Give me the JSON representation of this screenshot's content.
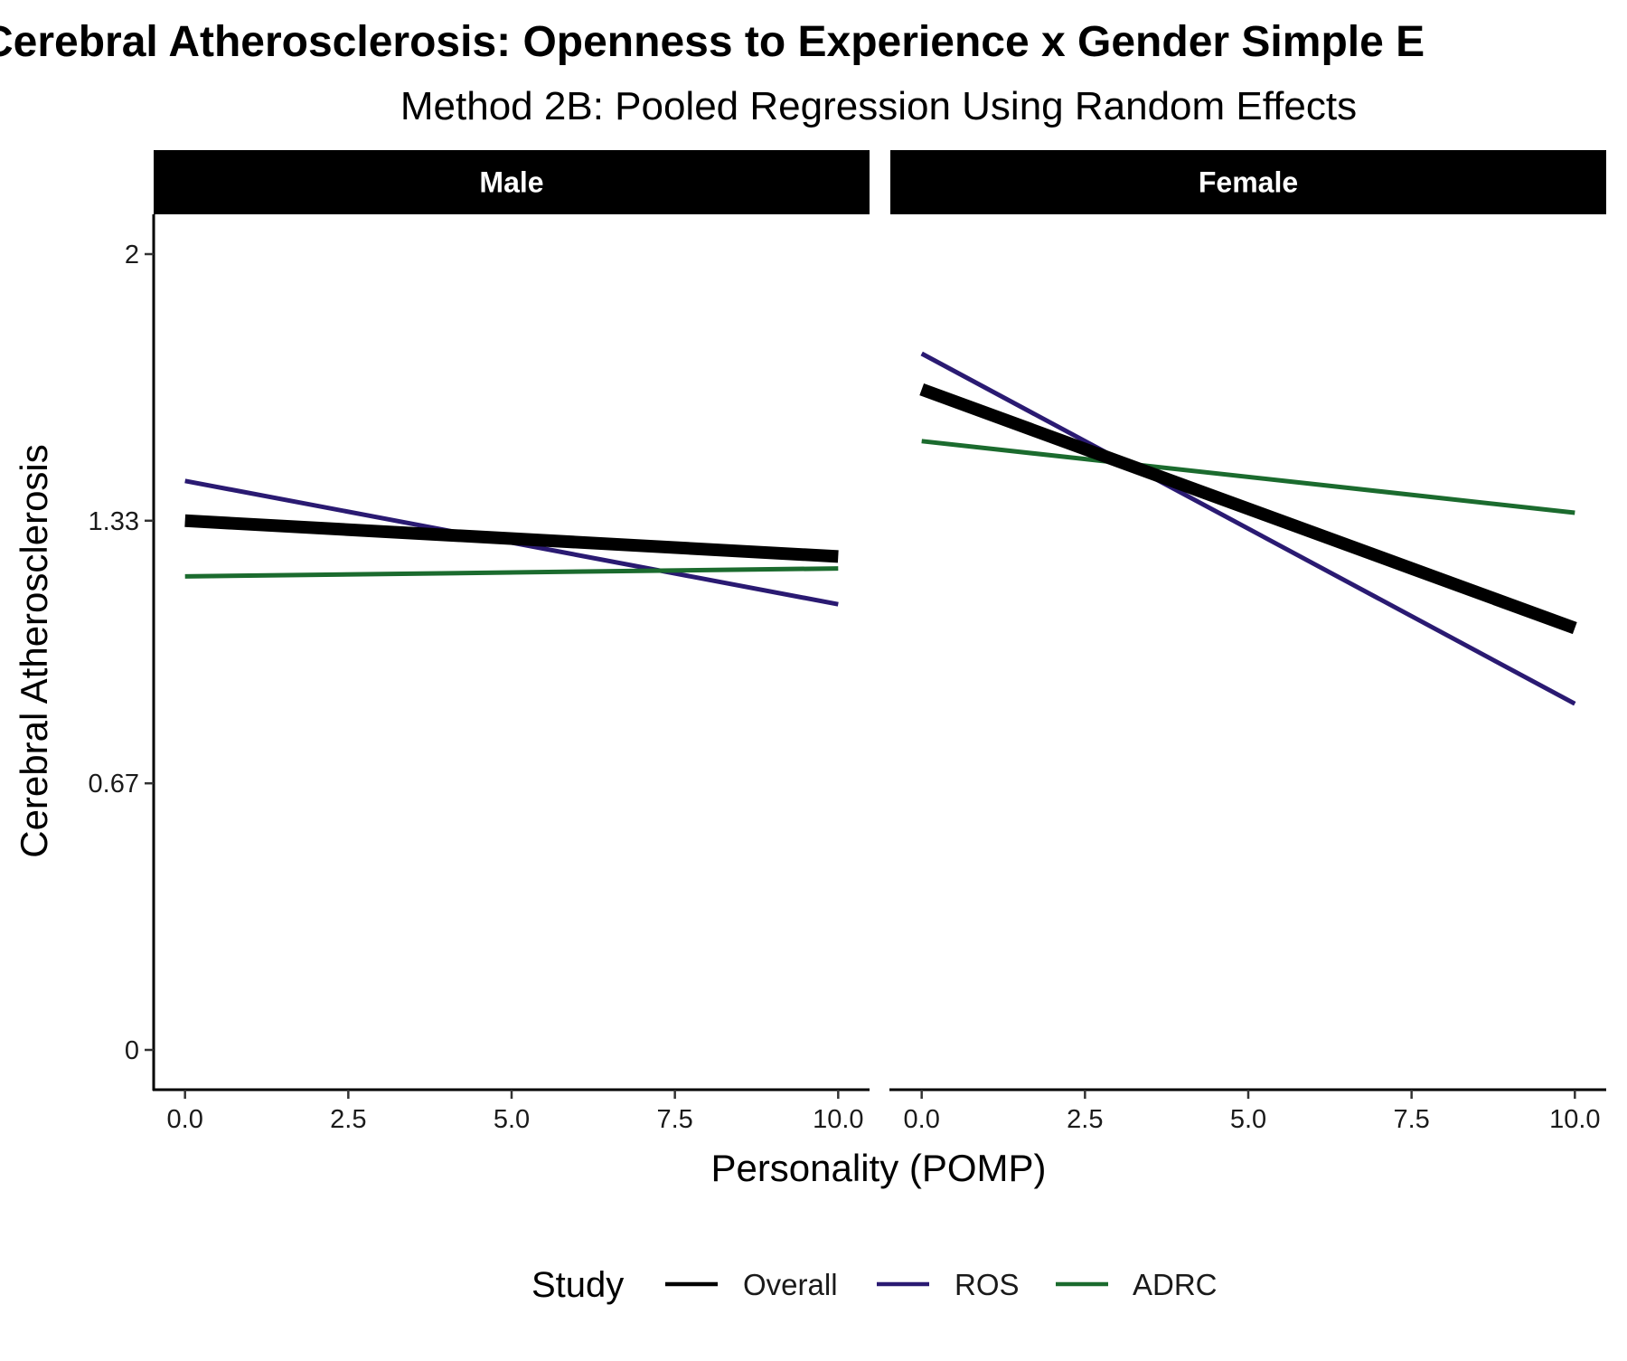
{
  "chart_data": {
    "type": "line",
    "title": "Cerebral Atherosclerosis: Openness to Experience x Gender Simple E",
    "subtitle": "Method 2B: Pooled Regression Using Random Effects",
    "xlabel": "Personality (POMP)",
    "ylabel": "Cerebral Atherosclerosis",
    "xlim": [
      -0.48,
      10.48
    ],
    "ylim": [
      -0.1,
      2.1
    ],
    "x_ticks": [
      0,
      2.5,
      5,
      7.5,
      10
    ],
    "x_tick_labels": [
      "0.0",
      "2.5",
      "5.0",
      "7.5",
      "10.0"
    ],
    "y_ticks": [
      0,
      0.67,
      1.33,
      2
    ],
    "y_tick_labels": [
      "0",
      "0.67",
      "1.33",
      "2"
    ],
    "grid": false,
    "legend_title": "Study",
    "legend_position": "bottom",
    "panels": [
      {
        "name": "Male",
        "series": [
          {
            "name": "ROS",
            "color": "#2a1a72",
            "x": [
              0,
              10
            ],
            "y": [
              1.43,
              1.12
            ]
          },
          {
            "name": "ADRC",
            "color": "#1b6b2e",
            "x": [
              0,
              10
            ],
            "y": [
              1.19,
              1.21
            ]
          },
          {
            "name": "Overall",
            "color": "#000000",
            "x": [
              0,
              10
            ],
            "y": [
              1.33,
              1.24
            ]
          }
        ]
      },
      {
        "name": "Female",
        "series": [
          {
            "name": "ROS",
            "color": "#2a1a72",
            "x": [
              0,
              10
            ],
            "y": [
              1.75,
              0.87
            ]
          },
          {
            "name": "ADRC",
            "color": "#1b6b2e",
            "x": [
              0,
              10
            ],
            "y": [
              1.53,
              1.35
            ]
          },
          {
            "name": "Overall",
            "color": "#000000",
            "x": [
              0,
              10
            ],
            "y": [
              1.66,
              1.06
            ]
          }
        ]
      }
    ],
    "legend": [
      {
        "name": "Overall",
        "color": "#000000"
      },
      {
        "name": "ROS",
        "color": "#2a1a72"
      },
      {
        "name": "ADRC",
        "color": "#1b6b2e"
      }
    ]
  }
}
